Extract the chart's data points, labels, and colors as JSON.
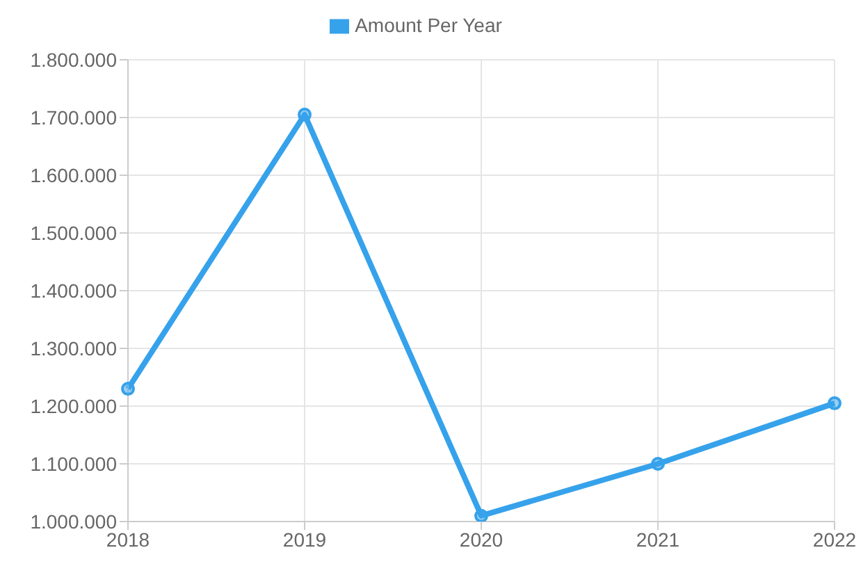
{
  "chart_data": {
    "type": "line",
    "categories": [
      "2018",
      "2019",
      "2020",
      "2021",
      "2022"
    ],
    "series": [
      {
        "name": "Amount Per Year",
        "color": "#36a2eb",
        "values": [
          1230000,
          1705000,
          1010000,
          1100000,
          1205000
        ]
      }
    ],
    "ylim": [
      1000000,
      1800000
    ],
    "yticks": [
      {
        "value": 1000000,
        "label": "1.000.000"
      },
      {
        "value": 1100000,
        "label": "1.100.000"
      },
      {
        "value": 1200000,
        "label": "1.200.000"
      },
      {
        "value": 1300000,
        "label": "1.300.000"
      },
      {
        "value": 1400000,
        "label": "1.400.000"
      },
      {
        "value": 1500000,
        "label": "1.500.000"
      },
      {
        "value": 1600000,
        "label": "1.600.000"
      },
      {
        "value": 1700000,
        "label": "1.700.000"
      },
      {
        "value": 1800000,
        "label": "1.800.000"
      }
    ],
    "grid": true,
    "legend": "top",
    "marker": "circle",
    "line_style": "solid"
  }
}
